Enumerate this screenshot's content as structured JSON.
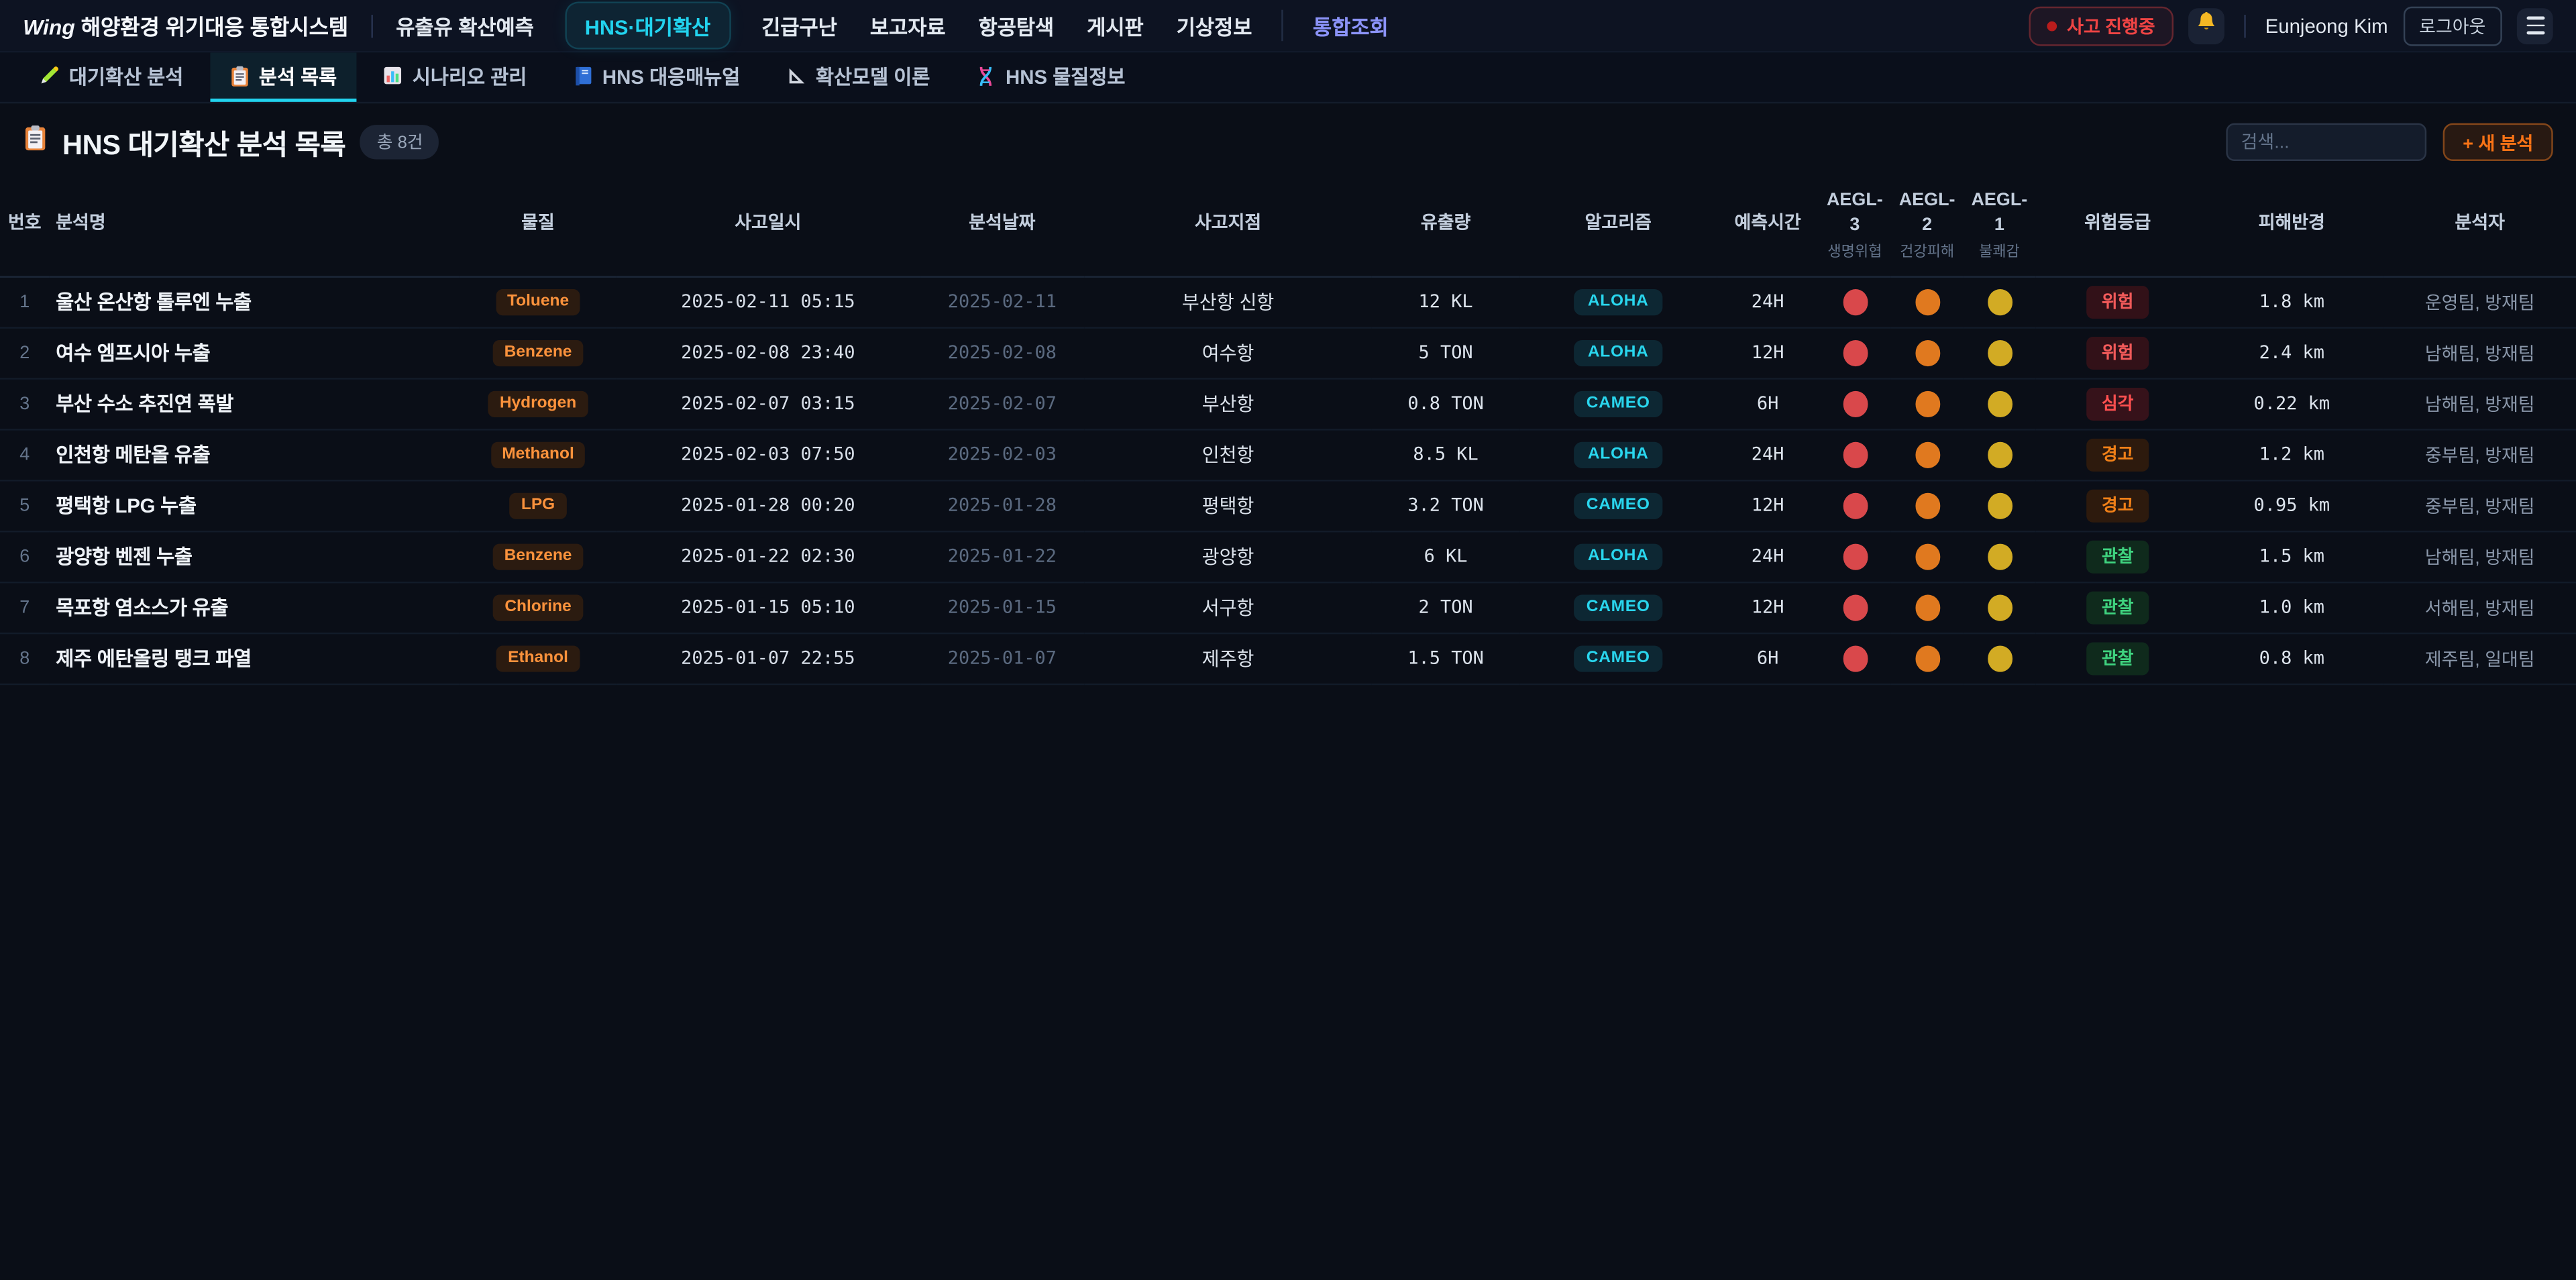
{
  "colors": {
    "accent_cyan": "#22d3ee",
    "accent_purple": "#8b93f8",
    "alert_red": "#ef4444",
    "material_orange": "#fb923c",
    "new_button_orange": "#f97316"
  },
  "topbar": {
    "logo_text": "Wing",
    "app_title": "해양환경 위기대응 통합시스템",
    "nav_items": [
      {
        "label": "유출유 확산예측",
        "active": false,
        "accent": false
      },
      {
        "label": "HNS·대기확산",
        "active": true,
        "accent": false
      },
      {
        "label": "긴급구난",
        "active": false,
        "accent": false
      },
      {
        "label": "보고자료",
        "active": false,
        "accent": false
      },
      {
        "label": "항공탐색",
        "active": false,
        "accent": false
      },
      {
        "label": "게시판",
        "active": false,
        "accent": false
      },
      {
        "label": "기상정보",
        "active": false,
        "accent": false
      },
      {
        "label": "통합조회",
        "active": false,
        "accent": true
      }
    ],
    "incident_badge": "사고 진행중",
    "bell_icon": "bell-icon",
    "user_name": "Eunjeong Kim",
    "logout_label": "로그아웃",
    "menu_icon": "hamburger-icon"
  },
  "tabs": [
    {
      "icon": "pen-icon",
      "label": "대기확산 분석",
      "active": false
    },
    {
      "icon": "clipboard-icon",
      "label": "분석 목록",
      "active": true
    },
    {
      "icon": "chart-icon",
      "label": "시나리오 관리",
      "active": false
    },
    {
      "icon": "book-icon",
      "label": "HNS 대응매뉴얼",
      "active": false
    },
    {
      "icon": "ruler-icon",
      "label": "확산모델 이론",
      "active": false
    },
    {
      "icon": "dna-icon",
      "label": "HNS 물질정보",
      "active": false
    }
  ],
  "page": {
    "icon": "clipboard-icon",
    "title": "HNS 대기확산 분석 목록",
    "count_badge": "총 8건",
    "search_placeholder": "검색...",
    "new_button_label": "+ 새 분석"
  },
  "table": {
    "headers": [
      {
        "label": "번호"
      },
      {
        "label": "분석명"
      },
      {
        "label": "물질"
      },
      {
        "label": "사고일시"
      },
      {
        "label": "분석날짜"
      },
      {
        "label": "사고지점"
      },
      {
        "label": "유출량"
      },
      {
        "label": "알고리즘"
      },
      {
        "label": "예측시간"
      },
      {
        "label": "AEGL-3",
        "sub": "생명위협"
      },
      {
        "label": "AEGL-2",
        "sub": "건강피해"
      },
      {
        "label": "AEGL-1",
        "sub": "불쾌감"
      },
      {
        "label": "위험등급"
      },
      {
        "label": "피해반경"
      },
      {
        "label": "분석자"
      }
    ],
    "aegl_colors": {
      "aegl3": "#d9484b",
      "aegl2": "#e0791f",
      "aegl1": "#d2ab24"
    },
    "risk_styles": {
      "위험": {
        "fg": "#f25a5a",
        "bg": "#321118"
      },
      "심각": {
        "fg": "#ff5050",
        "bg": "#36121a"
      },
      "경고": {
        "fg": "#f08018",
        "bg": "#2d1a0d"
      },
      "관찰": {
        "fg": "#3fd37f",
        "bg": "#0f2a1c"
      }
    },
    "rows": [
      {
        "no": "1",
        "name": "울산 온산항 톨루엔 누출",
        "material": "Toluene",
        "incident_datetime": "2025-02-11 05:15",
        "analysis_date": "2025-02-11",
        "location": "부산항 신항",
        "amount": "12 KL",
        "algorithm": "ALOHA",
        "duration": "24H",
        "risk": "위험",
        "radius": "1.8 km",
        "analysts": "운영팀, 방재팀"
      },
      {
        "no": "2",
        "name": "여수 엠프시아 누출",
        "material": "Benzene",
        "incident_datetime": "2025-02-08 23:40",
        "analysis_date": "2025-02-08",
        "location": "여수항",
        "amount": "5 TON",
        "algorithm": "ALOHA",
        "duration": "12H",
        "risk": "위험",
        "radius": "2.4 km",
        "analysts": "남해팀, 방재팀"
      },
      {
        "no": "3",
        "name": "부산 수소 추진연 폭발",
        "material": "Hydrogen",
        "incident_datetime": "2025-02-07 03:15",
        "analysis_date": "2025-02-07",
        "location": "부산항",
        "amount": "0.8 TON",
        "algorithm": "CAMEO",
        "duration": "6H",
        "risk": "심각",
        "radius": "0.22 km",
        "analysts": "남해팀, 방재팀"
      },
      {
        "no": "4",
        "name": "인천항 메탄올 유출",
        "material": "Methanol",
        "incident_datetime": "2025-02-03 07:50",
        "analysis_date": "2025-02-03",
        "location": "인천항",
        "amount": "8.5 KL",
        "algorithm": "ALOHA",
        "duration": "24H",
        "risk": "경고",
        "radius": "1.2 km",
        "analysts": "중부팀, 방재팀"
      },
      {
        "no": "5",
        "name": "평택항 LPG 누출",
        "material": "LPG",
        "incident_datetime": "2025-01-28 00:20",
        "analysis_date": "2025-01-28",
        "location": "평택항",
        "amount": "3.2 TON",
        "algorithm": "CAMEO",
        "duration": "12H",
        "risk": "경고",
        "radius": "0.95 km",
        "analysts": "중부팀, 방재팀"
      },
      {
        "no": "6",
        "name": "광양항 벤젠 누출",
        "material": "Benzene",
        "incident_datetime": "2025-01-22 02:30",
        "analysis_date": "2025-01-22",
        "location": "광양항",
        "amount": "6 KL",
        "algorithm": "ALOHA",
        "duration": "24H",
        "risk": "관찰",
        "radius": "1.5 km",
        "analysts": "남해팀, 방재팀"
      },
      {
        "no": "7",
        "name": "목포항 염소스가 유출",
        "material": "Chlorine",
        "incident_datetime": "2025-01-15 05:10",
        "analysis_date": "2025-01-15",
        "location": "서구항",
        "amount": "2 TON",
        "algorithm": "CAMEO",
        "duration": "12H",
        "risk": "관찰",
        "radius": "1.0 km",
        "analysts": "서해팀, 방재팀"
      },
      {
        "no": "8",
        "name": "제주 에탄올링 탱크 파열",
        "material": "Ethanol",
        "incident_datetime": "2025-01-07 22:55",
        "analysis_date": "2025-01-07",
        "location": "제주항",
        "amount": "1.5 TON",
        "algorithm": "CAMEO",
        "duration": "6H",
        "risk": "관찰",
        "radius": "0.8 km",
        "analysts": "제주팀, 일대팀"
      }
    ]
  }
}
